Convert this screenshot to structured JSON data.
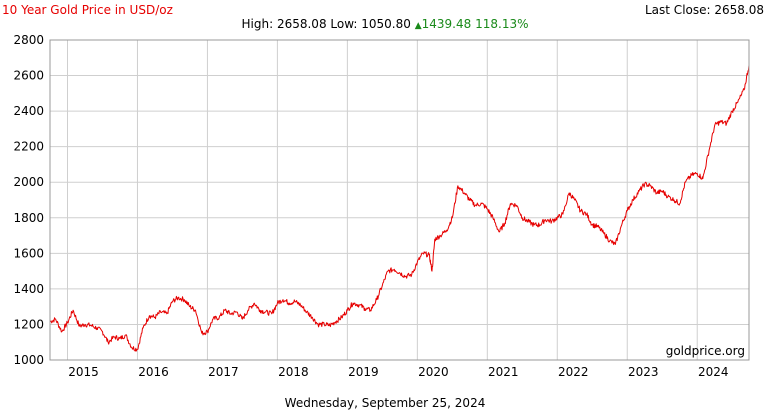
{
  "header": {
    "title": "10 Year Gold Price in USD/oz",
    "last_close_label": "Last Close:",
    "last_close_value": "2658.08",
    "high_label": "High:",
    "high_value": "2658.08",
    "low_label": "Low:",
    "low_value": "1050.80",
    "change_arrow": "▲",
    "change_value": "1439.48",
    "change_percent": "118.13%"
  },
  "footer": {
    "date": "Wednesday, September 25, 2024",
    "watermark": "goldprice.org"
  },
  "colors": {
    "line": "#e60000",
    "title": "#e60000",
    "change": "#1a8a1a",
    "grid": "#cfcfcf",
    "frame": "#999999"
  },
  "chart_data": {
    "type": "line",
    "title": "10 Year Gold Price in USD/oz",
    "xlabel": "",
    "ylabel": "",
    "ylim": [
      1000,
      2800
    ],
    "xlim": [
      2014.75,
      2024.74
    ],
    "yticks": [
      "1000",
      "1200",
      "1400",
      "1600",
      "1800",
      "2000",
      "2200",
      "2400",
      "2600",
      "2800"
    ],
    "xticks": [
      "2015",
      "2016",
      "2017",
      "2018",
      "2019",
      "2020",
      "2021",
      "2022",
      "2023",
      "2024"
    ],
    "grid": true,
    "legend": "none",
    "series": [
      {
        "x": [
          2014.75,
          2014.83,
          2014.92,
          2015.0,
          2015.08,
          2015.17,
          2015.25,
          2015.33,
          2015.42,
          2015.5,
          2015.58,
          2015.67,
          2015.75,
          2015.83,
          2015.92,
          2016.0,
          2016.08,
          2016.17,
          2016.25,
          2016.33,
          2016.42,
          2016.5,
          2016.58,
          2016.67,
          2016.75,
          2016.83,
          2016.92,
          2017.0,
          2017.08,
          2017.17,
          2017.25,
          2017.33,
          2017.42,
          2017.5,
          2017.58,
          2017.67,
          2017.75,
          2017.83,
          2017.92,
          2018.0,
          2018.08,
          2018.17,
          2018.25,
          2018.33,
          2018.42,
          2018.5,
          2018.58,
          2018.67,
          2018.75,
          2018.83,
          2018.92,
          2019.0,
          2019.08,
          2019.17,
          2019.25,
          2019.33,
          2019.42,
          2019.5,
          2019.58,
          2019.67,
          2019.75,
          2019.83,
          2019.92,
          2020.0,
          2020.08,
          2020.17,
          2020.21,
          2020.25,
          2020.33,
          2020.42,
          2020.5,
          2020.58,
          2020.67,
          2020.75,
          2020.83,
          2020.92,
          2021.0,
          2021.08,
          2021.17,
          2021.25,
          2021.33,
          2021.42,
          2021.5,
          2021.58,
          2021.67,
          2021.75,
          2021.83,
          2021.92,
          2022.0,
          2022.08,
          2022.17,
          2022.25,
          2022.33,
          2022.42,
          2022.5,
          2022.58,
          2022.67,
          2022.75,
          2022.83,
          2022.92,
          2023.0,
          2023.08,
          2023.17,
          2023.25,
          2023.33,
          2023.42,
          2023.5,
          2023.58,
          2023.67,
          2023.75,
          2023.83,
          2023.92,
          2024.0,
          2024.08,
          2024.17,
          2024.25,
          2024.33,
          2024.42,
          2024.5,
          2024.58,
          2024.67,
          2024.74
        ],
        "y": [
          1215,
          1230,
          1160,
          1210,
          1280,
          1190,
          1200,
          1195,
          1180,
          1160,
          1100,
          1130,
          1120,
          1140,
          1070,
          1060,
          1180,
          1250,
          1240,
          1270,
          1260,
          1330,
          1350,
          1340,
          1300,
          1280,
          1150,
          1160,
          1230,
          1240,
          1280,
          1260,
          1270,
          1230,
          1280,
          1320,
          1280,
          1270,
          1260,
          1320,
          1340,
          1320,
          1330,
          1310,
          1270,
          1240,
          1200,
          1200,
          1195,
          1215,
          1240,
          1280,
          1320,
          1310,
          1290,
          1280,
          1340,
          1420,
          1500,
          1510,
          1490,
          1470,
          1480,
          1550,
          1600,
          1590,
          1500,
          1680,
          1700,
          1730,
          1800,
          1980,
          1940,
          1900,
          1870,
          1880,
          1850,
          1800,
          1720,
          1770,
          1880,
          1870,
          1800,
          1780,
          1760,
          1760,
          1790,
          1780,
          1800,
          1820,
          1940,
          1900,
          1840,
          1820,
          1760,
          1750,
          1710,
          1670,
          1650,
          1760,
          1840,
          1900,
          1950,
          1990,
          1980,
          1940,
          1950,
          1920,
          1900,
          1880,
          2000,
          2040,
          2050,
          2020,
          2180,
          2320,
          2340,
          2330,
          2400,
          2450,
          2520,
          2658
        ]
      }
    ]
  }
}
